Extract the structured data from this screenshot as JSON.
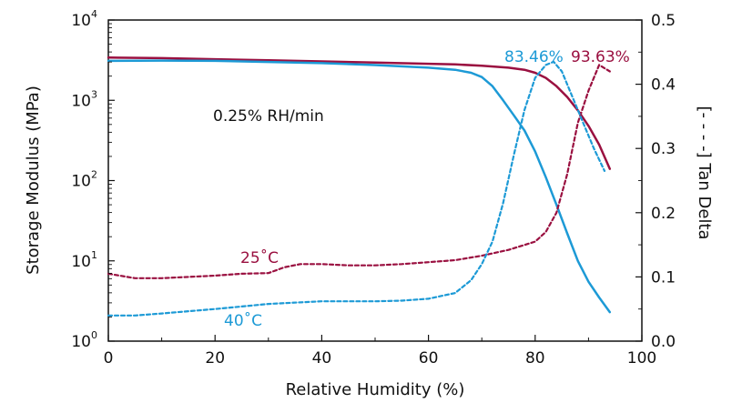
{
  "chart_data": {
    "type": "line",
    "xlabel": "Relative Humidity (%)",
    "ylabel": "Storage Modulus (MPa)",
    "y2label": "[- - - -] Tan Delta",
    "xlim": [
      0,
      100
    ],
    "xticks": [
      "0",
      "20",
      "40",
      "60",
      "80",
      "100"
    ],
    "ylim": [
      1,
      10000
    ],
    "yscale": "log",
    "yticks": [
      {
        "base": "10",
        "exp": "0"
      },
      {
        "base": "10",
        "exp": "1"
      },
      {
        "base": "10",
        "exp": "2"
      },
      {
        "base": "10",
        "exp": "3"
      },
      {
        "base": "10",
        "exp": "4"
      }
    ],
    "y2lim": [
      0.0,
      0.5
    ],
    "y2ticks": [
      "0.0",
      "0.1",
      "0.2",
      "0.3",
      "0.4",
      "0.5"
    ],
    "grid": false,
    "annotations": {
      "rate": "0.25% RH/min",
      "label_25": "25˚C",
      "label_40": "40˚C",
      "peak_40": "83.46%",
      "peak_25": "93.63%"
    },
    "colors": {
      "25C": "#9a1040",
      "40C": "#1d9ad6"
    },
    "series": [
      {
        "key": "modulus_25",
        "axis": "left",
        "style": "solid",
        "color": "#9a1040",
        "x": [
          0,
          10,
          20,
          30,
          40,
          50,
          60,
          65,
          70,
          75,
          78,
          80,
          82,
          84,
          86,
          88,
          90,
          92,
          94
        ],
        "y": [
          3400,
          3350,
          3250,
          3150,
          3050,
          2950,
          2850,
          2800,
          2700,
          2550,
          2400,
          2200,
          1900,
          1500,
          1100,
          750,
          480,
          280,
          140
        ]
      },
      {
        "key": "modulus_40",
        "axis": "left",
        "style": "solid",
        "color": "#1d9ad6",
        "x": [
          0,
          10,
          20,
          30,
          40,
          50,
          60,
          65,
          68,
          70,
          72,
          74,
          76,
          78,
          80,
          82,
          84,
          86,
          88,
          90,
          92,
          94
        ],
        "y": [
          3100,
          3120,
          3100,
          3000,
          2900,
          2750,
          2550,
          2400,
          2200,
          1950,
          1500,
          1000,
          650,
          420,
          230,
          110,
          50,
          22,
          10,
          5.5,
          3.5,
          2.3
        ]
      },
      {
        "key": "tandelta_25",
        "axis": "right",
        "style": "dashed",
        "color": "#9a1040",
        "x": [
          0,
          5,
          10,
          15,
          20,
          25,
          30,
          33,
          36,
          40,
          45,
          50,
          55,
          60,
          65,
          70,
          75,
          80,
          82,
          84,
          86,
          88,
          90,
          92,
          94
        ],
        "y": [
          0.105,
          0.098,
          0.098,
          0.1,
          0.102,
          0.105,
          0.106,
          0.115,
          0.12,
          0.12,
          0.118,
          0.118,
          0.12,
          0.123,
          0.126,
          0.133,
          0.142,
          0.155,
          0.17,
          0.2,
          0.26,
          0.34,
          0.39,
          0.43,
          0.42
        ]
      },
      {
        "key": "tandelta_40",
        "axis": "right",
        "style": "dashed",
        "color": "#1d9ad6",
        "x": [
          0,
          5,
          10,
          20,
          30,
          40,
          50,
          55,
          60,
          65,
          68,
          70,
          72,
          74,
          76,
          78,
          80,
          82,
          83.46,
          85,
          87,
          89,
          91,
          93
        ],
        "y": [
          0.04,
          0.04,
          0.043,
          0.05,
          0.058,
          0.062,
          0.062,
          0.063,
          0.066,
          0.075,
          0.095,
          0.12,
          0.155,
          0.215,
          0.29,
          0.36,
          0.41,
          0.43,
          0.435,
          0.42,
          0.38,
          0.34,
          0.3,
          0.265
        ]
      }
    ]
  }
}
